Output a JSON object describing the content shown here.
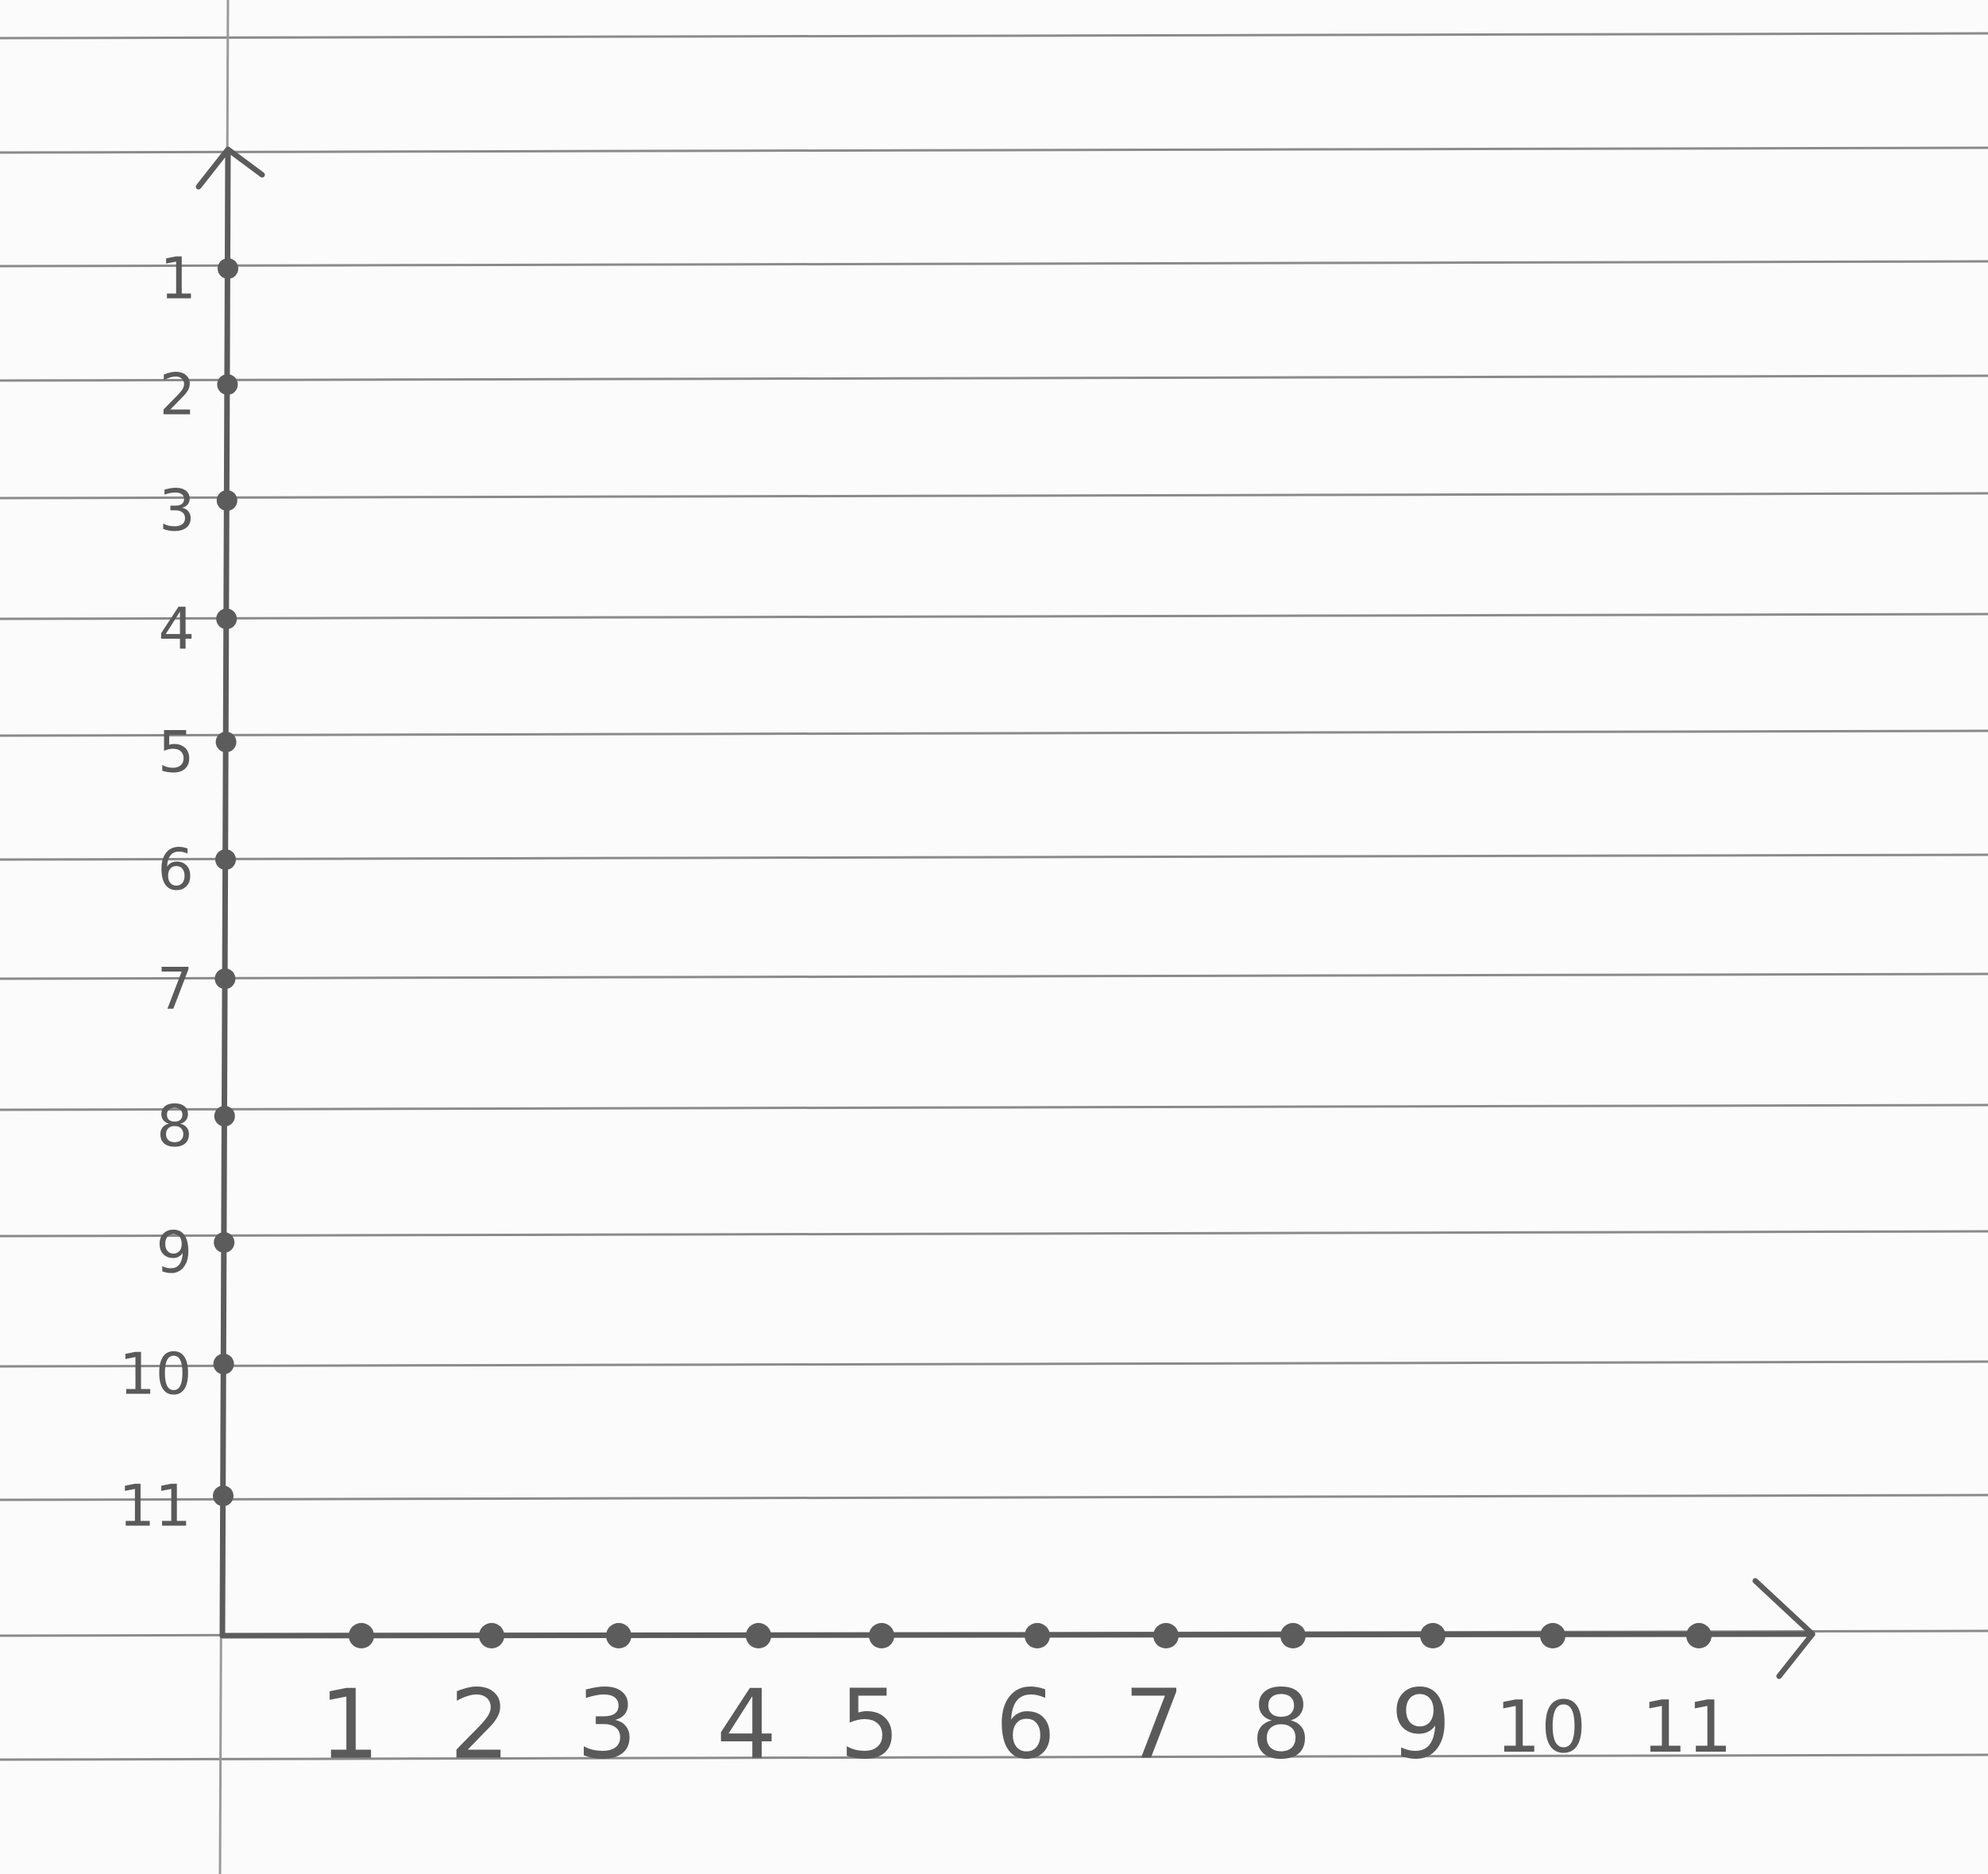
{
  "x_axis": {
    "ticks": [
      "1",
      "2",
      "3",
      "4",
      "5",
      "6",
      "7",
      "8",
      "9",
      "10",
      "11"
    ]
  },
  "y_axis": {
    "ticks": [
      "1",
      "2",
      "3",
      "4",
      "5",
      "6",
      "7",
      "8",
      "9",
      "10",
      "11"
    ]
  }
}
